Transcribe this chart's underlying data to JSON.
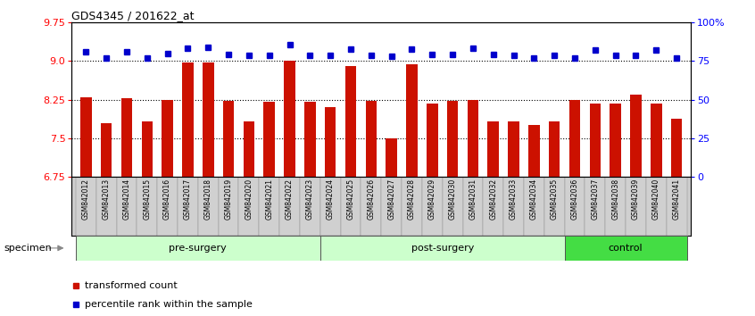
{
  "title": "GDS4345 / 201622_at",
  "samples": [
    "GSM842012",
    "GSM842013",
    "GSM842014",
    "GSM842015",
    "GSM842016",
    "GSM842017",
    "GSM842018",
    "GSM842019",
    "GSM842020",
    "GSM842021",
    "GSM842022",
    "GSM842023",
    "GSM842024",
    "GSM842025",
    "GSM842026",
    "GSM842027",
    "GSM842028",
    "GSM842029",
    "GSM842030",
    "GSM842031",
    "GSM842032",
    "GSM842033",
    "GSM842034",
    "GSM842035",
    "GSM842036",
    "GSM842037",
    "GSM842038",
    "GSM842039",
    "GSM842040",
    "GSM842041"
  ],
  "bar_values": [
    8.3,
    7.8,
    8.28,
    7.83,
    8.25,
    8.97,
    8.97,
    8.23,
    7.82,
    8.21,
    9.0,
    8.21,
    8.1,
    8.9,
    8.22,
    7.5,
    8.93,
    8.17,
    8.22,
    8.25,
    7.82,
    7.83,
    7.75,
    7.82,
    8.25,
    8.17,
    8.17,
    8.35,
    8.18,
    7.88
  ],
  "percentile_values": [
    9.17,
    9.06,
    9.17,
    9.06,
    9.14,
    9.25,
    9.27,
    9.13,
    9.1,
    9.1,
    9.32,
    9.1,
    9.1,
    9.22,
    9.1,
    9.09,
    9.22,
    9.13,
    9.13,
    9.25,
    9.13,
    9.1,
    9.06,
    9.1,
    9.06,
    9.21,
    9.1,
    9.1,
    9.21,
    9.06
  ],
  "groups": [
    {
      "label": "pre-surgery",
      "start": 0,
      "end": 12,
      "color": "#CCFFCC"
    },
    {
      "label": "post-surgery",
      "start": 12,
      "end": 24,
      "color": "#CCFFCC"
    },
    {
      "label": "control",
      "start": 24,
      "end": 30,
      "color": "#44DD44"
    }
  ],
  "bar_color": "#CC1100",
  "dot_color": "#0000CC",
  "ylim_left": [
    6.75,
    9.75
  ],
  "yticks_left": [
    6.75,
    7.5,
    8.25,
    9.0,
    9.75
  ],
  "yticks_right_pct": [
    0,
    25,
    50,
    75,
    100
  ],
  "ytick_labels_right": [
    "0",
    "25",
    "50",
    "75",
    "100%"
  ],
  "grid_values": [
    9.0,
    8.25,
    7.5
  ],
  "pct_min": 0,
  "pct_max": 100
}
